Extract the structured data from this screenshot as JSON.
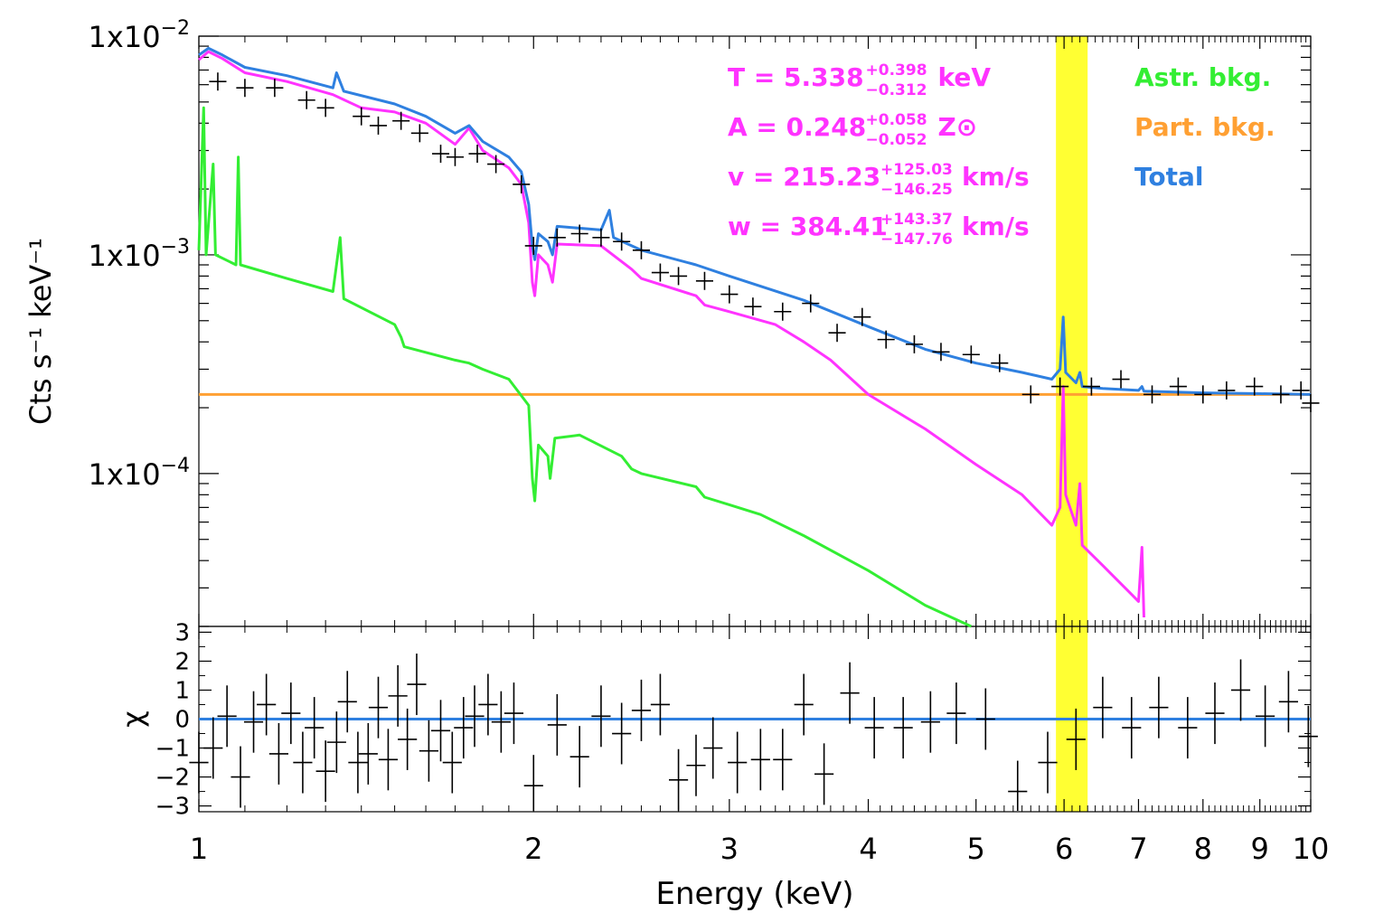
{
  "chart_data": [
    {
      "type": "line",
      "panel": "spectrum",
      "xlabel": "Energy (keV)",
      "ylabel": "Cts s⁻¹ keV⁻¹",
      "xscale": "log",
      "yscale": "log",
      "xlim": [
        1,
        10
      ],
      "ylim": [
        2e-05,
        0.01
      ],
      "y_ticks": [
        {
          "value": 0.01,
          "mantissa": "1x10",
          "exponent": "−2"
        },
        {
          "value": 0.001,
          "mantissa": "1x10",
          "exponent": "−3"
        },
        {
          "value": 0.0001,
          "mantissa": "1x10",
          "exponent": "−4"
        }
      ],
      "x_ticks": [
        {
          "value": 1,
          "label": "1"
        },
        {
          "value": 2,
          "label": "2"
        },
        {
          "value": 3,
          "label": "3"
        },
        {
          "value": 4,
          "label": "4"
        },
        {
          "value": 5,
          "label": "5"
        },
        {
          "value": 6,
          "label": "6"
        },
        {
          "value": 7,
          "label": "7"
        },
        {
          "value": 8,
          "label": "8"
        },
        {
          "value": 9,
          "label": "9"
        },
        {
          "value": 10,
          "label": "10"
        }
      ],
      "highlight_band": {
        "x": [
          5.9,
          6.3
        ],
        "color": "#ffff33"
      },
      "legend": [
        {
          "label": "Astr. bkg.",
          "color": "#33ee33"
        },
        {
          "label": "Part. bkg.",
          "color": "#ffa033"
        },
        {
          "label": "Total",
          "color": "#2f80e0"
        }
      ],
      "annotations": [
        {
          "lhs": "T",
          "value": "5.338",
          "plus": "+0.398",
          "minus": "−0.312",
          "unit": "keV"
        },
        {
          "lhs": "A",
          "value": "0.248",
          "plus": "+0.058",
          "minus": "−0.052",
          "unit": "Z⊙"
        },
        {
          "lhs": "v",
          "value": "215.23",
          "plus": "+125.03",
          "minus": "−146.25",
          "unit": "km/s"
        },
        {
          "lhs": "w",
          "value": "384.41",
          "plus": "+143.37",
          "minus": "−147.76",
          "unit": "km/s"
        }
      ],
      "colors": {
        "data": "#000000",
        "total": "#2f80e0",
        "source": "#ff33ff",
        "astr": "#33ee33",
        "part": "#ffa033"
      },
      "series": [
        {
          "name": "Part. bkg.",
          "points": [
            [
              1,
              0.00023
            ],
            [
              10,
              0.00023
            ]
          ]
        },
        {
          "name": "Astr. bkg.",
          "points": [
            [
              1,
              0.00105
            ],
            [
              1.01,
              0.0047
            ],
            [
              1.015,
              0.001
            ],
            [
              1.03,
              0.0026
            ],
            [
              1.035,
              0.001
            ],
            [
              1.08,
              0.0009
            ],
            [
              1.085,
              0.0028
            ],
            [
              1.09,
              0.0009
            ],
            [
              1.2,
              0.00078
            ],
            [
              1.32,
              0.00068
            ],
            [
              1.34,
              0.0012
            ],
            [
              1.35,
              0.00063
            ],
            [
              1.5,
              0.00048
            ],
            [
              1.52,
              0.00042
            ],
            [
              1.53,
              0.00038
            ],
            [
              1.7,
              0.00033
            ],
            [
              1.75,
              0.00032
            ],
            [
              1.8,
              0.0003
            ],
            [
              1.9,
              0.00027
            ],
            [
              1.98,
              0.000205
            ],
            [
              1.995,
              9.5e-05
            ],
            [
              2.005,
              7.5e-05
            ],
            [
              2.02,
              0.000135
            ],
            [
              2.06,
              0.00012
            ],
            [
              2.07,
              9.5e-05
            ],
            [
              2.09,
              0.000145
            ],
            [
              2.2,
              0.00015
            ],
            [
              2.4,
              0.00012
            ],
            [
              2.45,
              0.000105
            ],
            [
              2.5,
              0.0001
            ],
            [
              2.8,
              8.7e-05
            ],
            [
              2.85,
              7.8e-05
            ],
            [
              3.0,
              7.2e-05
            ],
            [
              3.2,
              6.5e-05
            ],
            [
              3.5,
              5.2e-05
            ],
            [
              4.0,
              3.6e-05
            ],
            [
              4.5,
              2.5e-05
            ],
            [
              4.95,
              2e-05
            ]
          ]
        },
        {
          "name": "Source",
          "points": [
            [
              1,
              0.0078
            ],
            [
              1.02,
              0.0085
            ],
            [
              1.05,
              0.0079
            ],
            [
              1.1,
              0.0068
            ],
            [
              1.2,
              0.0062
            ],
            [
              1.32,
              0.0054
            ],
            [
              1.4,
              0.0047
            ],
            [
              1.5,
              0.0045
            ],
            [
              1.6,
              0.004
            ],
            [
              1.7,
              0.0032
            ],
            [
              1.75,
              0.0038
            ],
            [
              1.8,
              0.003
            ],
            [
              1.9,
              0.0025
            ],
            [
              1.95,
              0.0021
            ],
            [
              1.98,
              0.0014
            ],
            [
              1.995,
              0.00075
            ],
            [
              2.005,
              0.00065
            ],
            [
              2.02,
              0.001
            ],
            [
              2.06,
              0.0009
            ],
            [
              2.08,
              0.00075
            ],
            [
              2.1,
              0.00112
            ],
            [
              2.3,
              0.0011
            ],
            [
              2.45,
              0.00086
            ],
            [
              2.5,
              0.00078
            ],
            [
              2.8,
              0.00065
            ],
            [
              2.85,
              0.00059
            ],
            [
              3.0,
              0.00055
            ],
            [
              3.3,
              0.00048
            ],
            [
              3.5,
              0.0004
            ],
            [
              3.7,
              0.00033
            ],
            [
              4.0,
              0.00023
            ],
            [
              4.5,
              0.00016
            ],
            [
              5.0,
              0.00011
            ],
            [
              5.5,
              8e-05
            ],
            [
              5.85,
              5.8e-05
            ],
            [
              5.95,
              7e-05
            ],
            [
              5.99,
              0.00025
            ],
            [
              6.02,
              8e-05
            ],
            [
              6.15,
              5.8e-05
            ],
            [
              6.2,
              9e-05
            ],
            [
              6.23,
              4.7e-05
            ],
            [
              6.5,
              3.8e-05
            ],
            [
              6.9,
              2.8e-05
            ],
            [
              7.0,
              2.6e-05
            ],
            [
              7.05,
              4.6e-05
            ],
            [
              7.08,
              2.2e-05
            ]
          ]
        },
        {
          "name": "Total",
          "points": [
            [
              1,
              0.0082
            ],
            [
              1.02,
              0.0088
            ],
            [
              1.05,
              0.0082
            ],
            [
              1.1,
              0.0072
            ],
            [
              1.2,
              0.0066
            ],
            [
              1.32,
              0.0058
            ],
            [
              1.33,
              0.0068
            ],
            [
              1.35,
              0.0056
            ],
            [
              1.5,
              0.0049
            ],
            [
              1.6,
              0.0043
            ],
            [
              1.7,
              0.0036
            ],
            [
              1.75,
              0.0039
            ],
            [
              1.8,
              0.0033
            ],
            [
              1.9,
              0.0028
            ],
            [
              1.95,
              0.0024
            ],
            [
              1.98,
              0.0017
            ],
            [
              1.995,
              0.0011
            ],
            [
              2.005,
              0.00095
            ],
            [
              2.02,
              0.00125
            ],
            [
              2.06,
              0.00115
            ],
            [
              2.08,
              0.001
            ],
            [
              2.1,
              0.00135
            ],
            [
              2.3,
              0.0013
            ],
            [
              2.34,
              0.0016
            ],
            [
              2.36,
              0.0012
            ],
            [
              2.5,
              0.00105
            ],
            [
              2.8,
              0.0009
            ],
            [
              3.0,
              0.0008
            ],
            [
              3.5,
              0.00062
            ],
            [
              4.0,
              0.00047
            ],
            [
              4.5,
              0.00037
            ],
            [
              5.0,
              0.00032
            ],
            [
              5.5,
              0.00029
            ],
            [
              5.85,
              0.00027
            ],
            [
              5.95,
              0.0003
            ],
            [
              5.99,
              0.00052
            ],
            [
              6.02,
              0.00029
            ],
            [
              6.15,
              0.00026
            ],
            [
              6.2,
              0.00029
            ],
            [
              6.23,
              0.00025
            ],
            [
              6.5,
              0.000245
            ],
            [
              7.0,
              0.00024
            ],
            [
              7.05,
              0.00025
            ],
            [
              7.08,
              0.000238
            ],
            [
              8.0,
              0.000234
            ],
            [
              9.0,
              0.000232
            ],
            [
              10.0,
              0.00023
            ]
          ]
        },
        {
          "name": "Data",
          "points": [
            [
              1.04,
              0.0062
            ],
            [
              1.1,
              0.0058
            ],
            [
              1.17,
              0.0058
            ],
            [
              1.25,
              0.0051
            ],
            [
              1.3,
              0.0047
            ],
            [
              1.4,
              0.0043
            ],
            [
              1.45,
              0.0039
            ],
            [
              1.52,
              0.0041
            ],
            [
              1.58,
              0.0036
            ],
            [
              1.65,
              0.0029
            ],
            [
              1.7,
              0.0028
            ],
            [
              1.78,
              0.0029
            ],
            [
              1.85,
              0.0026
            ],
            [
              1.95,
              0.0021
            ],
            [
              2.0,
              0.0011
            ],
            [
              2.1,
              0.0012
            ],
            [
              2.2,
              0.00125
            ],
            [
              2.3,
              0.0012
            ],
            [
              2.4,
              0.00115
            ],
            [
              2.5,
              0.00105
            ],
            [
              2.6,
              0.00083
            ],
            [
              2.7,
              0.0008
            ],
            [
              2.85,
              0.00076
            ],
            [
              3.0,
              0.00066
            ],
            [
              3.15,
              0.00058
            ],
            [
              3.35,
              0.00055
            ],
            [
              3.55,
              0.0006
            ],
            [
              3.75,
              0.00044
            ],
            [
              3.95,
              0.00052
            ],
            [
              4.15,
              0.00041
            ],
            [
              4.4,
              0.00039
            ],
            [
              4.65,
              0.00036
            ],
            [
              4.95,
              0.00035
            ],
            [
              5.25,
              0.00032
            ],
            [
              5.6,
              0.00023
            ],
            [
              5.95,
              0.00025
            ],
            [
              6.35,
              0.00025
            ],
            [
              6.75,
              0.00027
            ],
            [
              7.2,
              0.00023
            ],
            [
              7.6,
              0.00025
            ],
            [
              8.0,
              0.00023
            ],
            [
              8.4,
              0.00024
            ],
            [
              8.9,
              0.00025
            ],
            [
              9.4,
              0.00023
            ],
            [
              9.8,
              0.00024
            ],
            [
              10.0,
              0.00021
            ]
          ]
        }
      ]
    },
    {
      "type": "scatter",
      "panel": "residuals",
      "ylabel": "χ",
      "xscale": "log",
      "xlim": [
        1,
        10
      ],
      "ylim": [
        -3.2,
        3.2
      ],
      "y_ticks": [
        {
          "value": 3,
          "label": "3"
        },
        {
          "value": 2,
          "label": "2"
        },
        {
          "value": 1,
          "label": "1"
        },
        {
          "value": 0,
          "label": "0"
        },
        {
          "value": -1,
          "label": "−1"
        },
        {
          "value": -2,
          "label": "−2"
        },
        {
          "value": -3,
          "label": "−3"
        }
      ],
      "zero_line_color": "#2f80e0",
      "points": [
        [
          1.0,
          -1.5
        ],
        [
          1.03,
          -1.0
        ],
        [
          1.06,
          0.1
        ],
        [
          1.09,
          -2.0
        ],
        [
          1.12,
          -0.1
        ],
        [
          1.15,
          0.5
        ],
        [
          1.18,
          -1.2
        ],
        [
          1.21,
          0.2
        ],
        [
          1.24,
          -1.5
        ],
        [
          1.27,
          -0.3
        ],
        [
          1.3,
          -1.8
        ],
        [
          1.33,
          -0.8
        ],
        [
          1.36,
          0.6
        ],
        [
          1.39,
          -1.5
        ],
        [
          1.42,
          -1.2
        ],
        [
          1.45,
          0.4
        ],
        [
          1.48,
          -1.4
        ],
        [
          1.51,
          0.8
        ],
        [
          1.54,
          -0.7
        ],
        [
          1.57,
          1.2
        ],
        [
          1.61,
          -1.1
        ],
        [
          1.65,
          -0.4
        ],
        [
          1.69,
          -1.5
        ],
        [
          1.73,
          -0.3
        ],
        [
          1.77,
          0.1
        ],
        [
          1.82,
          0.5
        ],
        [
          1.87,
          -0.1
        ],
        [
          1.92,
          0.2
        ],
        [
          2.0,
          -2.3
        ],
        [
          2.1,
          -0.2
        ],
        [
          2.2,
          -1.3
        ],
        [
          2.3,
          0.1
        ],
        [
          2.4,
          -0.5
        ],
        [
          2.5,
          0.3
        ],
        [
          2.6,
          0.5
        ],
        [
          2.7,
          -2.1
        ],
        [
          2.8,
          -1.6
        ],
        [
          2.9,
          -1.0
        ],
        [
          3.05,
          -1.5
        ],
        [
          3.2,
          -1.4
        ],
        [
          3.35,
          -1.4
        ],
        [
          3.5,
          0.5
        ],
        [
          3.65,
          -1.9
        ],
        [
          3.85,
          0.9
        ],
        [
          4.05,
          -0.3
        ],
        [
          4.3,
          -0.3
        ],
        [
          4.55,
          -0.1
        ],
        [
          4.8,
          0.2
        ],
        [
          5.1,
          0.0
        ],
        [
          5.45,
          -2.5
        ],
        [
          5.8,
          -1.5
        ],
        [
          6.15,
          -0.7
        ],
        [
          6.5,
          0.4
        ],
        [
          6.9,
          -0.3
        ],
        [
          7.3,
          0.4
        ],
        [
          7.75,
          -0.3
        ],
        [
          8.2,
          0.2
        ],
        [
          8.65,
          1.0
        ],
        [
          9.1,
          0.1
        ],
        [
          9.55,
          0.6
        ],
        [
          9.95,
          -0.6
        ]
      ]
    }
  ]
}
